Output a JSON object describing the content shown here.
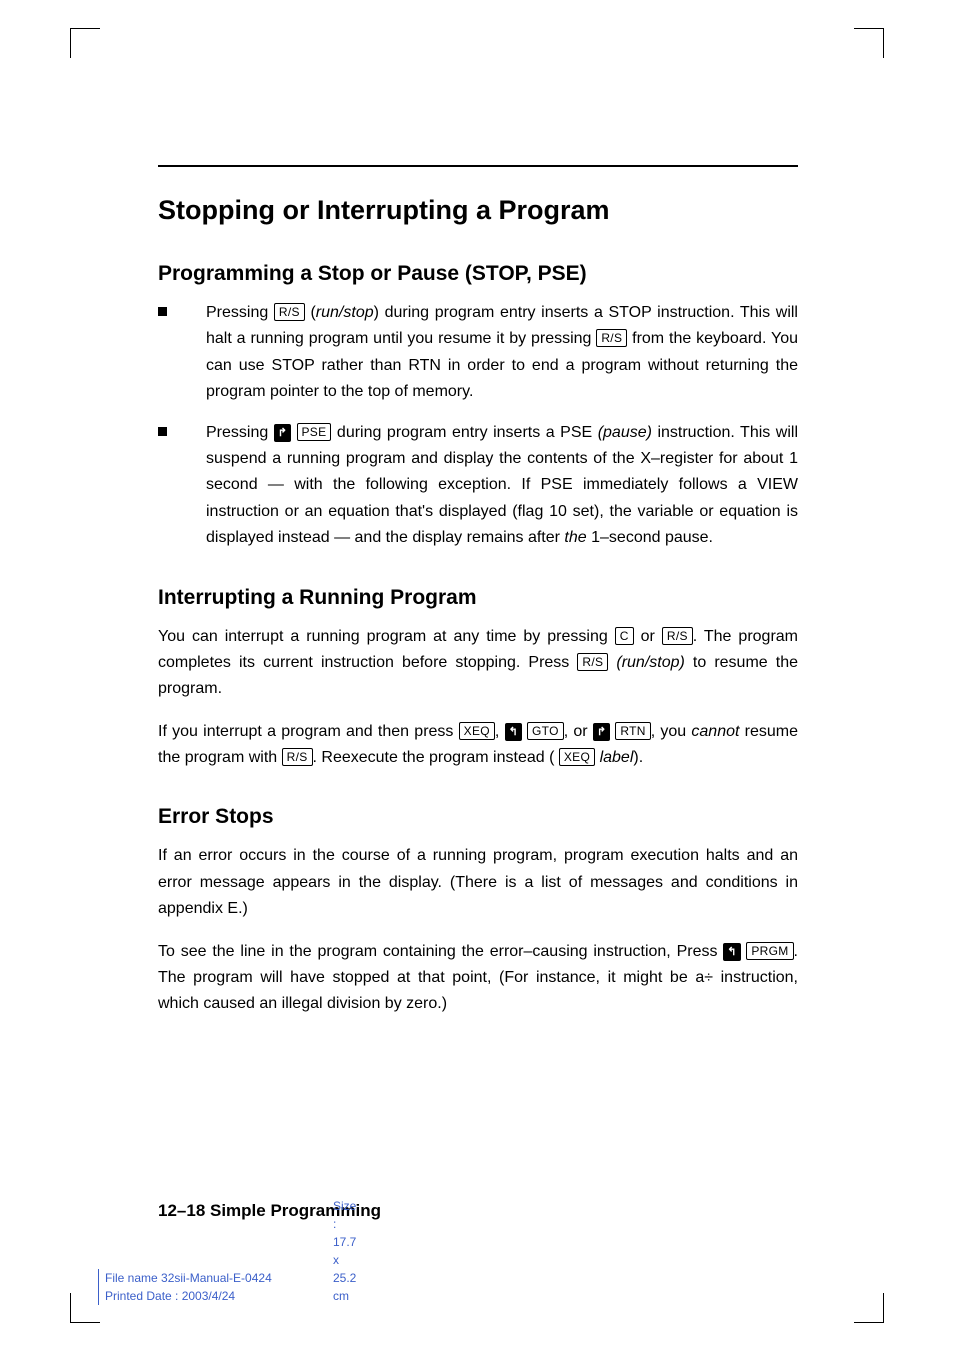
{
  "title": "Stopping or Interrupting a Program",
  "sections": {
    "s1": {
      "heading": "Programming a Stop or Pause (STOP, PSE)",
      "items": [
        {
          "pre": "Pressing ",
          "key1": "R/S",
          "mid1": " (",
          "it1": "run/stop",
          "mid2": ") during program entry inserts a STOP instruction. This will halt a running program until you resume it by pressing ",
          "key2": "R/S",
          "tail": " from the keyboard. You can use STOP rather than RTN in order to end a program without returning the program pointer to the top of memory."
        },
        {
          "pre": "Pressing ",
          "shift": "↱",
          "key1": "PSE",
          "mid1": " during program entry inserts a PSE ",
          "it1": "(pause)",
          "mid2": " instruction. This will suspend a running program and display the contents of the X–register for about 1 second — with the following exception. If PSE immediately follows a VIEW instruction or an equation that's displayed (flag 10 set), the variable or equation is displayed instead — and the display remains after ",
          "it2": "the",
          "tail": " 1–second pause."
        }
      ]
    },
    "s2": {
      "heading": "Interrupting a Running Program",
      "p1_a": "You can interrupt a running program at any time by pressing ",
      "key_c": "C",
      "p1_or": " or ",
      "key_rs": "R/S",
      "p1_b": ". The program completes its current instruction before stopping. Press ",
      "key_rs2": "R/S",
      "p1_c": " ",
      "it1": "(run/stop)",
      "p1_d": " to resume the program.",
      "p2_a": "If you interrupt a program and then press ",
      "key_xeq": "XEQ",
      "p2_b": ", ",
      "shift_l": "↰",
      "key_gto": "GTO",
      "p2_c": ", or ",
      "shift_r": "↱",
      "key_rtn": "RTN",
      "p2_d": ", you ",
      "it2": "cannot",
      "p2_e": " resume the program with ",
      "key_rs3": "R/S",
      "p2_f": ". Reexecute the program instead ( ",
      "key_xeq2": "XEQ",
      "p2_g": " ",
      "it3": "label",
      "p2_h": ")."
    },
    "s3": {
      "heading": "Error Stops",
      "p1": "If an error occurs in the course of a running program, program execution halts and an error message appears in the display. (There is a list of messages and conditions in appendix E.)",
      "p2_a": "To see the line in the program containing the error–causing instruction, Press ",
      "shift_l": "↰",
      "key_prgm": "PRGM",
      "p2_b": ". The program will have stopped at that point, (For instance, it might be a÷ instruction, which caused an illegal division by zero.)"
    }
  },
  "footer": "12–18 Simple Programming",
  "meta": {
    "file": "File name 32sii-Manual-E-0424",
    "date": "Printed Date : 2003/4/24",
    "size": "Size : 17.7 x 25.2 cm"
  }
}
